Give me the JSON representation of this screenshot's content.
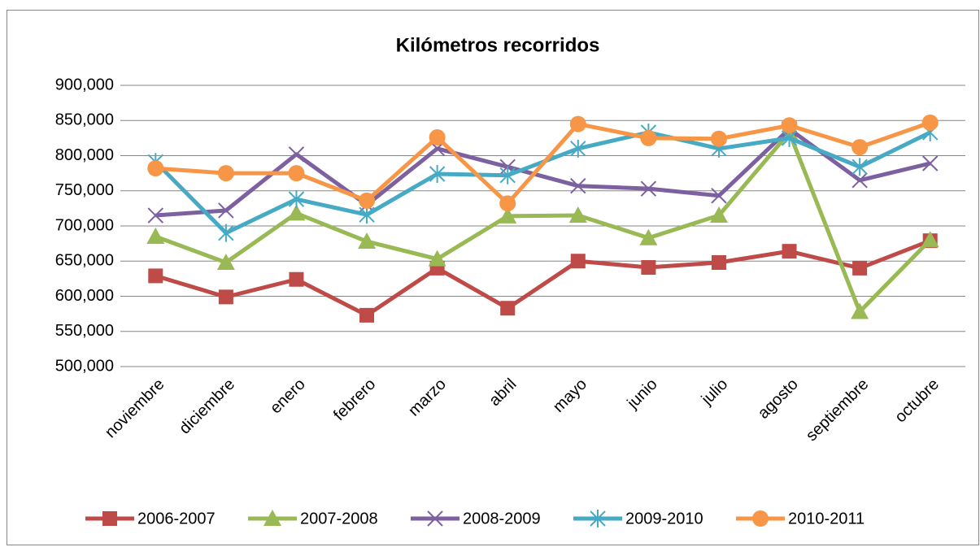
{
  "chart_data": {
    "type": "line",
    "title": "Kilómetros recorridos",
    "categories": [
      "noviembre",
      "diciembre",
      "enero",
      "febrero",
      "marzo",
      "abril",
      "mayo",
      "junio",
      "julio",
      "agosto",
      "septiembre",
      "octubre"
    ],
    "series": [
      {
        "name": "2006-2007",
        "color": "#be4b48",
        "marker": "square",
        "values": [
          629000,
          599000,
          624000,
          573000,
          640000,
          583000,
          650000,
          641000,
          648000,
          664000,
          640000,
          679000
        ]
      },
      {
        "name": "2007-2008",
        "color": "#98b954",
        "marker": "triangle",
        "values": [
          685000,
          648000,
          718000,
          678000,
          653000,
          714000,
          715000,
          683000,
          715000,
          833000,
          578000,
          680000
        ]
      },
      {
        "name": "2008-2009",
        "color": "#7d60a0",
        "marker": "x",
        "values": [
          715000,
          722000,
          802000,
          730000,
          810000,
          784000,
          757000,
          753000,
          743000,
          838000,
          765000,
          789000
        ]
      },
      {
        "name": "2009-2010",
        "color": "#46aac5",
        "marker": "star",
        "values": [
          791000,
          690000,
          738000,
          716000,
          774000,
          772000,
          810000,
          833000,
          810000,
          825000,
          784000,
          833000
        ]
      },
      {
        "name": "2010-2011",
        "color": "#f79646",
        "marker": "circle",
        "values": [
          782000,
          775000,
          775000,
          736000,
          826000,
          732000,
          845000,
          825000,
          824000,
          843000,
          812000,
          847000
        ]
      }
    ],
    "ylim": [
      500000,
      900000
    ],
    "yticks": [
      {
        "value": 500000,
        "label": "500,000"
      },
      {
        "value": 550000,
        "label": "550,000"
      },
      {
        "value": 600000,
        "label": "600,000"
      },
      {
        "value": 650000,
        "label": "650,000"
      },
      {
        "value": 700000,
        "label": "700,000"
      },
      {
        "value": 750000,
        "label": "750,000"
      },
      {
        "value": 800000,
        "label": "800,000"
      },
      {
        "value": 850000,
        "label": "850,000"
      },
      {
        "value": 900000,
        "label": "900,000"
      }
    ],
    "grid": true,
    "legend": "bottom"
  }
}
